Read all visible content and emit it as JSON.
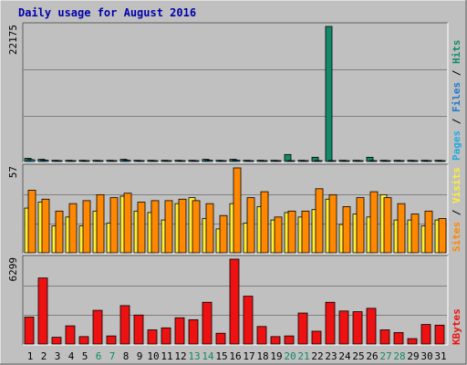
{
  "chart_data": {
    "type": "bar",
    "title": "Daily usage for August 2016",
    "days": [
      1,
      2,
      3,
      4,
      5,
      6,
      7,
      8,
      9,
      10,
      11,
      12,
      13,
      14,
      15,
      16,
      17,
      18,
      19,
      20,
      21,
      22,
      23,
      24,
      25,
      26,
      27,
      28,
      29,
      30,
      31
    ],
    "weekend_days": [
      6,
      7,
      13,
      14,
      20,
      21,
      27,
      28
    ],
    "hits_panel": {
      "ymax_label": "22175",
      "ymax": 22175,
      "legend": [
        "Pages",
        "Files",
        "Hits"
      ],
      "series": [
        {
          "name": "Pages",
          "values": [
            280,
            200,
            130,
            130,
            130,
            130,
            130,
            200,
            130,
            130,
            130,
            130,
            130,
            200,
            130,
            200,
            130,
            130,
            130,
            130,
            130,
            130,
            130,
            130,
            130,
            130,
            130,
            130,
            130,
            130,
            130
          ]
        },
        {
          "name": "Files",
          "values": [
            330,
            240,
            150,
            150,
            150,
            150,
            150,
            240,
            150,
            150,
            150,
            150,
            150,
            240,
            150,
            240,
            150,
            150,
            150,
            150,
            150,
            150,
            150,
            150,
            150,
            150,
            150,
            150,
            150,
            150,
            150
          ]
        },
        {
          "name": "Hits",
          "values": [
            520,
            360,
            200,
            200,
            200,
            200,
            200,
            360,
            200,
            200,
            200,
            200,
            200,
            360,
            200,
            360,
            200,
            200,
            200,
            1150,
            200,
            700,
            22175,
            200,
            200,
            700,
            200,
            200,
            200,
            200,
            200
          ]
        }
      ]
    },
    "visits_panel": {
      "ymax_label": "57",
      "ymax": 57,
      "legend": [
        "Sites",
        "Visits"
      ],
      "series": [
        {
          "name": "Visits",
          "values": [
            30,
            34,
            18,
            24,
            18,
            28,
            20,
            38,
            28,
            27,
            22,
            33,
            37,
            23,
            16,
            33,
            20,
            31,
            22,
            27,
            24,
            29,
            36,
            19,
            26,
            24,
            39,
            22,
            22,
            18,
            22
          ]
        },
        {
          "name": "Sites",
          "values": [
            42,
            36,
            28,
            33,
            35,
            39,
            37,
            40,
            34,
            35,
            35,
            36,
            35,
            33,
            25,
            57,
            37,
            41,
            24,
            28,
            28,
            43,
            39,
            31,
            37,
            41,
            37,
            33,
            26,
            28,
            23
          ]
        }
      ]
    },
    "kbytes_panel": {
      "ymax_label": "6299",
      "ymax": 6299,
      "legend": [
        "KBytes"
      ],
      "series": [
        {
          "name": "KBytes",
          "values": [
            2000,
            4900,
            500,
            1350,
            550,
            2500,
            600,
            2850,
            2150,
            1050,
            1200,
            1950,
            1800,
            3100,
            800,
            6299,
            3550,
            1300,
            550,
            600,
            2300,
            950,
            3100,
            2450,
            2400,
            2650,
            1050,
            850,
            400,
            1450,
            1400
          ]
        }
      ]
    }
  },
  "colors": {
    "background": "#c0c0c0",
    "plot_bg": "#c0c0c0",
    "title": "#0000aa",
    "hits": "#128a6a",
    "files": "#2277cc",
    "pages": "#22aadd",
    "visits": "#ffee33",
    "sites": "#ff8800",
    "kbytes": "#ee1111",
    "weekday_label": "#000000",
    "weekend_label": "#118866",
    "legend_separator": "#000000"
  }
}
